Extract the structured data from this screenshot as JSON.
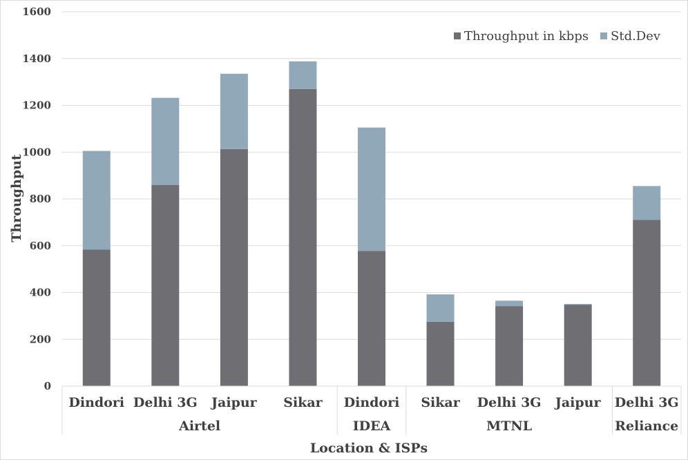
{
  "chart_data": {
    "type": "bar",
    "stacked": true,
    "title": "",
    "xlabel": "Location & ISPs",
    "ylabel": "Throughput",
    "ylim": [
      0,
      1600
    ],
    "yticks": [
      0,
      200,
      400,
      600,
      800,
      1000,
      1200,
      1400,
      1600
    ],
    "grid": true,
    "legend_position": "top-right",
    "categories": [
      "Dindori",
      "Delhi 3G",
      "Jaipur",
      "Sikar",
      "Dindori",
      "Sikar",
      "Delhi 3G",
      "Jaipur",
      "Delhi 3G"
    ],
    "groups": [
      {
        "name": "Airtel",
        "count": 4
      },
      {
        "name": "IDEA",
        "count": 1
      },
      {
        "name": "MTNL",
        "count": 3
      },
      {
        "name": "Reliance",
        "count": 1
      }
    ],
    "series": [
      {
        "name": "Throughput in kbps",
        "color": "#6f6e73",
        "values": [
          583,
          860,
          1013,
          1270,
          578,
          275,
          342,
          348,
          710
        ]
      },
      {
        "name": "Std.Dev",
        "color": "#91a8b9",
        "values": [
          422,
          372,
          322,
          118,
          527,
          117,
          23,
          3,
          145
        ]
      }
    ]
  }
}
